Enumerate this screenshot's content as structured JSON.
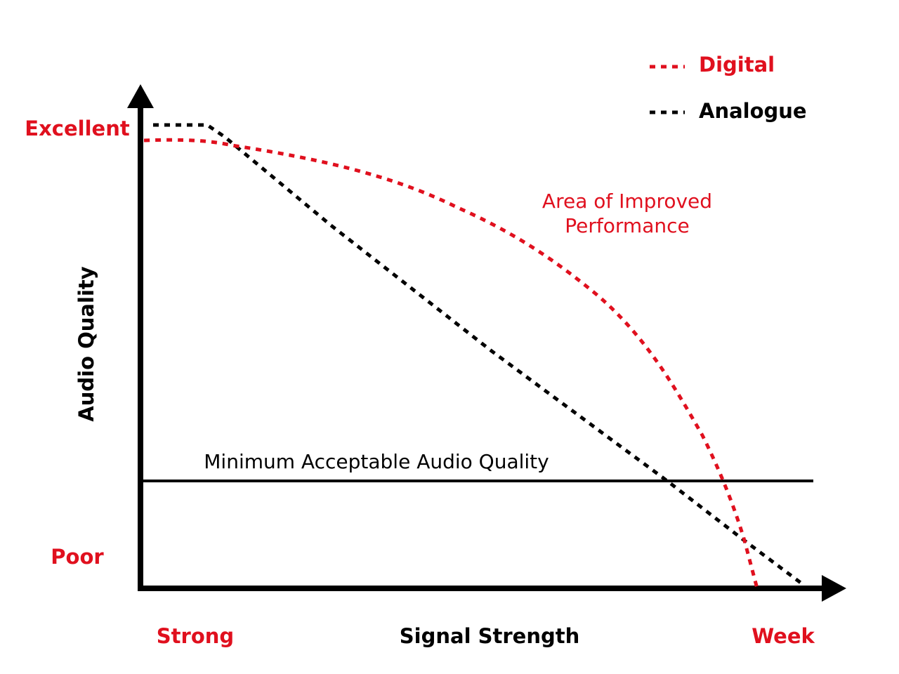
{
  "legend": {
    "items": [
      "Digital",
      "Analogue"
    ]
  },
  "y_axis": {
    "label": "Audio Quality",
    "top": "Excellent",
    "bottom": "Poor"
  },
  "x_axis": {
    "label": "Signal Strength",
    "left": "Strong",
    "right": "Week"
  },
  "annotations": {
    "threshold": "Minimum Acceptable Audio Quality",
    "area": [
      "Area of Improved",
      "Performance"
    ]
  }
}
